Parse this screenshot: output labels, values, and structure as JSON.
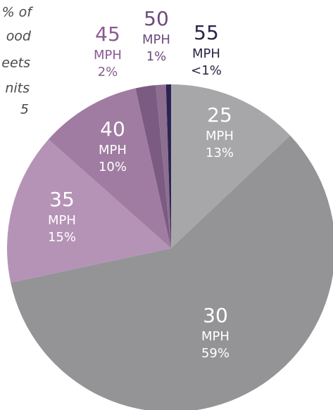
{
  "chart_data": {
    "type": "pie",
    "annotation_lines": [
      "% of",
      "ood",
      "eets",
      "nits",
      "5"
    ],
    "unit": "MPH",
    "categories": [
      "25",
      "30",
      "35",
      "40",
      "45",
      "50",
      "55"
    ],
    "values": [
      13,
      59,
      15,
      10,
      2,
      1,
      0.5
    ],
    "value_labels": [
      "13%",
      "59%",
      "15%",
      "10%",
      "2%",
      "1%",
      "<1%"
    ],
    "colors": [
      "#a7a7aa",
      "#949497",
      "#b593b6",
      "#a07ca2",
      "#7b5b82",
      "#8d6f92",
      "#2b2452"
    ],
    "label_colors": [
      "#ffffff",
      "#ffffff",
      "#ffffff",
      "#ffffff",
      "#8b5a92",
      "#6c4b7c",
      "#2b2444"
    ]
  }
}
